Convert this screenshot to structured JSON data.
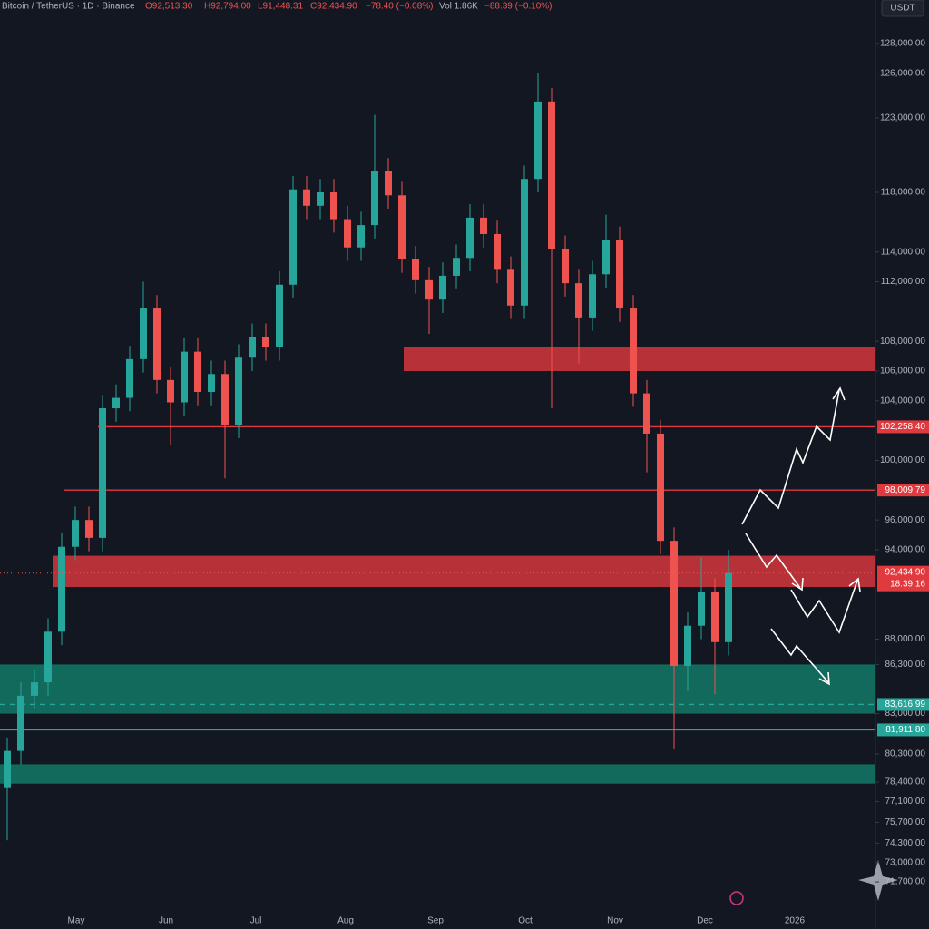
{
  "header": {
    "symbol": "Bitcoin / TetherUS · 1D · Binance",
    "ohlc": [
      "O92,513.30",
      "H92,794.00",
      "L91,448.31",
      "C92,434.90",
      "−78.40 (−0.08%)"
    ],
    "volume": "Vol 1.86K",
    "volume_change": "−88.39 (−0.10%)"
  },
  "currency": "USDT",
  "chart_data": {
    "type": "candlestick",
    "categories": [
      "May",
      "Jun",
      "Jul",
      "Aug",
      "Sep",
      "Oct",
      "Nov",
      "Dec",
      "2026"
    ],
    "up_color": "#26a69a",
    "down_color": "#ef5350",
    "open": [
      78000,
      80500,
      84200,
      85100,
      88500,
      94200,
      96000,
      94800,
      103500,
      104200,
      106800,
      110200,
      105400,
      103900,
      107300,
      104600,
      105800,
      102400,
      106900,
      108300,
      107600,
      111800,
      118200,
      117100,
      118000,
      116200,
      114300,
      115800,
      119400,
      117800,
      113500,
      112100,
      110800,
      112400,
      113600,
      116300,
      115200,
      112800,
      110400,
      118900,
      124100,
      114200,
      111900,
      109600,
      112500,
      114800,
      110200,
      104500,
      101800,
      94600,
      86200,
      88900,
      91200,
      87800
    ],
    "high": [
      81400,
      85100,
      86000,
      89400,
      95100,
      96900,
      96900,
      104400,
      105100,
      107700,
      112000,
      111100,
      106300,
      108200,
      108200,
      106700,
      106700,
      107800,
      109200,
      109200,
      112700,
      119100,
      119100,
      118900,
      118900,
      117100,
      116700,
      123200,
      120300,
      118700,
      114400,
      113000,
      113300,
      114500,
      117200,
      117200,
      116100,
      113700,
      119800,
      126000,
      125000,
      115100,
      112800,
      113400,
      116500,
      115700,
      111100,
      105400,
      102700,
      95500,
      89800,
      93500,
      92100,
      94000
    ],
    "low": [
      74500,
      79600,
      83300,
      84200,
      87600,
      93300,
      93900,
      93900,
      102600,
      103300,
      105900,
      104500,
      101000,
      103000,
      103700,
      103700,
      98800,
      101500,
      106000,
      106700,
      106700,
      110900,
      116200,
      116200,
      115300,
      113400,
      113400,
      114900,
      116900,
      112600,
      111200,
      108500,
      109900,
      111500,
      112700,
      114300,
      111900,
      109500,
      109500,
      118000,
      103500,
      111000,
      106500,
      108700,
      111600,
      109300,
      103600,
      99200,
      93700,
      80600,
      84500,
      88000,
      84300,
      86900
    ],
    "close": [
      80500,
      84200,
      85100,
      88500,
      94200,
      96000,
      94800,
      103500,
      104200,
      106800,
      110200,
      105400,
      103900,
      107300,
      104600,
      105800,
      102400,
      106900,
      108300,
      107600,
      111800,
      118200,
      117100,
      118000,
      116200,
      114300,
      115800,
      119400,
      117800,
      113500,
      112100,
      110800,
      112400,
      113600,
      116300,
      115200,
      112800,
      110400,
      118900,
      124100,
      114200,
      111900,
      109600,
      112500,
      114800,
      110200,
      104500,
      101800,
      94600,
      86200,
      88900,
      91200,
      87800,
      92434.9
    ],
    "ylim": [
      70000,
      130000
    ],
    "yticks": [
      {
        "value": 128000,
        "label": "128,000.00"
      },
      {
        "value": 126000,
        "label": "126,000.00"
      },
      {
        "value": 123000,
        "label": "123,000.00"
      },
      {
        "value": 118000,
        "label": "118,000.00"
      },
      {
        "value": 114000,
        "label": "114,000.00"
      },
      {
        "value": 112000,
        "label": "112,000.00"
      },
      {
        "value": 108000,
        "label": "108,000.00"
      },
      {
        "value": 106000,
        "label": "106,000.00"
      },
      {
        "value": 104000,
        "label": "104,000.00"
      },
      {
        "value": 100000,
        "label": "100,000.00"
      },
      {
        "value": 96000,
        "label": "96,000.00"
      },
      {
        "value": 94000,
        "label": "94,000.00"
      },
      {
        "value": 88000,
        "label": "88,000.00"
      },
      {
        "value": 86300,
        "label": "86,300.00"
      },
      {
        "value": 83000,
        "label": "83,000.00"
      },
      {
        "value": 80300,
        "label": "80,300.00"
      },
      {
        "value": 78400,
        "label": "78,400.00"
      },
      {
        "value": 77100,
        "label": "77,100.00"
      },
      {
        "value": 75700,
        "label": "75,700.00"
      },
      {
        "value": 74300,
        "label": "74,300.00"
      },
      {
        "value": 73000,
        "label": "73,000.00"
      },
      {
        "value": 71700,
        "label": "71,700.00"
      }
    ],
    "zones": [
      {
        "range": [
          106000,
          107600
        ],
        "color": "#e0393e"
      },
      {
        "range": [
          91500,
          93600
        ],
        "color": "#e0393e"
      },
      {
        "range": [
          83000,
          86300
        ],
        "color": "#12806a"
      },
      {
        "range": [
          78300,
          79600
        ],
        "color": "#12806a"
      }
    ],
    "levels": [
      {
        "value": 102258.4,
        "label": "102,258.40",
        "color": "#e0393e",
        "style": "solid"
      },
      {
        "value": 98009.79,
        "label": "98,009.79",
        "color": "#e0393e",
        "style": "solid"
      },
      {
        "value": 83616.99,
        "label": "83,616.99",
        "color": "#26a69a",
        "style": "dashed"
      },
      {
        "value": 81911.8,
        "label": "81,911.80",
        "color": "#26a69a",
        "style": "solid"
      }
    ],
    "last_price": {
      "value": 92434.9,
      "label": "92,434.90",
      "countdown": "18:39:16"
    }
  }
}
